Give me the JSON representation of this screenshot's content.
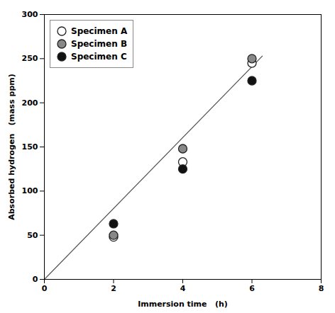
{
  "chart_data": {
    "type": "scatter",
    "xlabel": "Immersion time   (h)",
    "ylabel": "Absorbed hydrogen   (mass ppm)",
    "xlim": [
      0,
      8
    ],
    "ylim": [
      0,
      300
    ],
    "xticks": [
      0,
      2,
      4,
      6,
      8
    ],
    "yticks": [
      0,
      50,
      100,
      150,
      200,
      250,
      300
    ],
    "legend": "upper left",
    "series": [
      {
        "name": "Specimen A",
        "color": "white",
        "marker": "circle",
        "x": [
          2,
          4,
          6
        ],
        "values": [
          48,
          133,
          245
        ]
      },
      {
        "name": "Specimen B",
        "color": "#888888",
        "marker": "circle",
        "x": [
          2,
          4,
          6
        ],
        "values": [
          50,
          148,
          250
        ]
      },
      {
        "name": "Specimen C",
        "color": "#111111",
        "marker": "circle",
        "x": [
          2,
          4,
          6
        ],
        "values": [
          63,
          125,
          225
        ]
      },
      {
        "type": "line",
        "color": "#555555",
        "x": [
          0,
          6.3
        ],
        "values": [
          0,
          253
        ]
      }
    ]
  }
}
